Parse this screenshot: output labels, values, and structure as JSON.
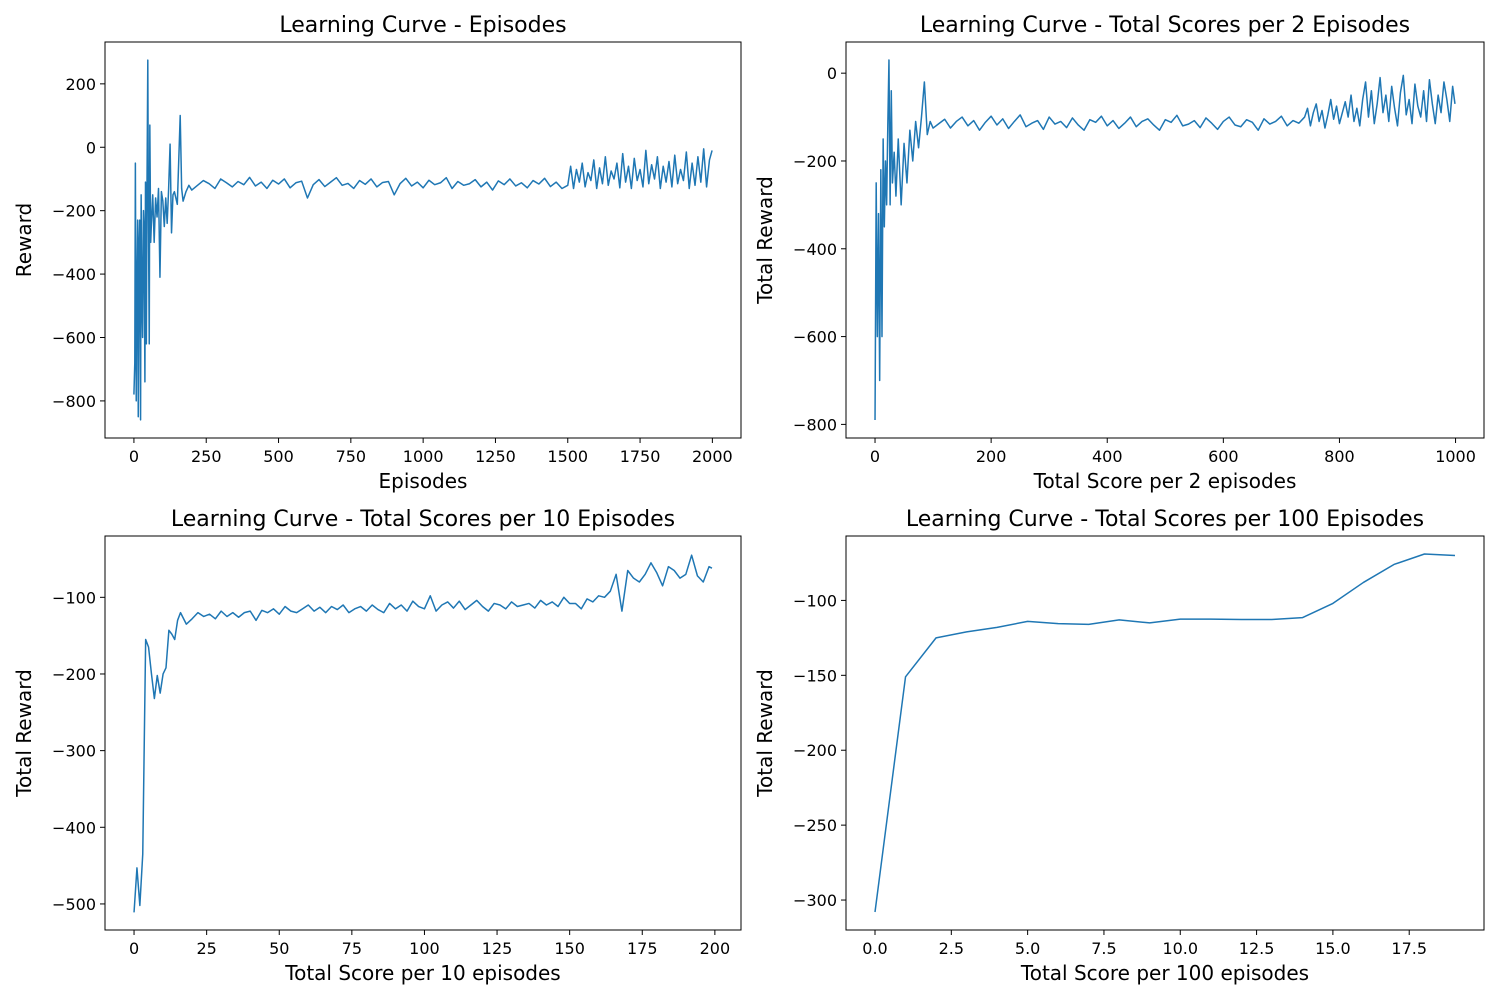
{
  "chart_data": [
    {
      "type": "line",
      "title": "Learning Curve - Episodes",
      "xlabel": "Episodes",
      "ylabel": "Reward",
      "color": "#1f77b4",
      "xlim": [
        -100,
        2099
      ],
      "ylim": [
        -917,
        332
      ],
      "xticks": [
        0,
        250,
        500,
        750,
        1000,
        1250,
        1500,
        1750,
        2000
      ],
      "yticks": [
        {
          "value": -800,
          "label": "−800"
        },
        {
          "value": -600,
          "label": "−600"
        },
        {
          "value": -400,
          "label": "−400"
        },
        {
          "value": -200,
          "label": "−200"
        },
        0,
        200
      ],
      "x": [
        0,
        3,
        5,
        8,
        10,
        13,
        15,
        18,
        20,
        23,
        25,
        28,
        30,
        33,
        35,
        38,
        40,
        43,
        45,
        48,
        50,
        53,
        55,
        58,
        60,
        65,
        70,
        75,
        80,
        85,
        90,
        95,
        100,
        105,
        110,
        115,
        120,
        125,
        130,
        135,
        140,
        150,
        160,
        165,
        170,
        180,
        190,
        200,
        220,
        240,
        260,
        280,
        300,
        320,
        340,
        360,
        380,
        400,
        420,
        440,
        460,
        480,
        500,
        520,
        540,
        560,
        580,
        600,
        620,
        640,
        660,
        680,
        700,
        720,
        740,
        760,
        780,
        800,
        820,
        840,
        860,
        880,
        900,
        920,
        940,
        960,
        980,
        1000,
        1020,
        1040,
        1060,
        1080,
        1100,
        1120,
        1140,
        1160,
        1180,
        1200,
        1220,
        1240,
        1260,
        1280,
        1300,
        1320,
        1340,
        1360,
        1380,
        1400,
        1420,
        1440,
        1460,
        1480,
        1500,
        1510,
        1520,
        1530,
        1540,
        1550,
        1560,
        1570,
        1580,
        1590,
        1600,
        1610,
        1620,
        1630,
        1640,
        1650,
        1660,
        1670,
        1680,
        1690,
        1700,
        1710,
        1720,
        1730,
        1740,
        1750,
        1760,
        1770,
        1780,
        1790,
        1800,
        1810,
        1820,
        1830,
        1840,
        1850,
        1860,
        1870,
        1880,
        1890,
        1900,
        1910,
        1920,
        1930,
        1940,
        1950,
        1960,
        1970,
        1980,
        1990,
        1999
      ],
      "values": [
        -780,
        -680,
        -50,
        -800,
        -490,
        -230,
        -850,
        -300,
        -230,
        -860,
        -150,
        -500,
        -600,
        -200,
        -250,
        -740,
        -110,
        -620,
        -150,
        275,
        -200,
        -620,
        70,
        -300,
        -250,
        -150,
        -300,
        -160,
        -220,
        -130,
        -410,
        -140,
        -170,
        -250,
        -160,
        -240,
        -130,
        10,
        -270,
        -150,
        -140,
        -180,
        100,
        -130,
        -170,
        -140,
        -120,
        -135,
        -120,
        -105,
        -115,
        -130,
        -100,
        -112,
        -125,
        -108,
        -118,
        -95,
        -122,
        -110,
        -130,
        -104,
        -116,
        -100,
        -128,
        -112,
        -107,
        -160,
        -118,
        -102,
        -124,
        -110,
        -96,
        -120,
        -114,
        -130,
        -105,
        -117,
        -100,
        -125,
        -111,
        -108,
        -150,
        -115,
        -98,
        -122,
        -110,
        -128,
        -104,
        -118,
        -112,
        -96,
        -130,
        -108,
        -120,
        -115,
        -102,
        -125,
        -110,
        -135,
        -106,
        -118,
        -100,
        -122,
        -112,
        -128,
        -105,
        -116,
        -98,
        -124,
        -110,
        -130,
        -120,
        -60,
        -130,
        -70,
        -110,
        -50,
        -125,
        -80,
        -105,
        -40,
        -130,
        -65,
        -115,
        -30,
        -120,
        -75,
        -100,
        -50,
        -128,
        -20,
        -110,
        -60,
        -130,
        -35,
        -105,
        -70,
        -125,
        -10,
        -115,
        -55,
        -100,
        -30,
        -130,
        -60,
        -110,
        -45,
        -125,
        -25,
        -115,
        -70,
        -105,
        -15,
        -130,
        -50,
        -120,
        -30,
        -110,
        -5,
        -125,
        -40,
        -10
      ]
    },
    {
      "type": "line",
      "title": "Learning Curve - Total Scores per 2 Episodes",
      "xlabel": "Total Score per 2 episodes",
      "ylabel": "Total Reward",
      "color": "#1f77b4",
      "xlim": [
        -50,
        1049
      ],
      "ylim": [
        -831,
        71
      ],
      "xticks": [
        0,
        200,
        400,
        600,
        800,
        1000
      ],
      "yticks": [
        {
          "value": -800,
          "label": "−800"
        },
        {
          "value": -600,
          "label": "−600"
        },
        {
          "value": -400,
          "label": "−400"
        },
        {
          "value": -200,
          "label": "−200"
        },
        0
      ],
      "x": [
        0,
        2,
        4,
        6,
        8,
        10,
        12,
        14,
        16,
        18,
        20,
        22,
        24,
        26,
        28,
        30,
        33,
        36,
        40,
        45,
        50,
        55,
        60,
        65,
        70,
        75,
        80,
        85,
        90,
        95,
        100,
        110,
        120,
        130,
        140,
        150,
        160,
        170,
        180,
        190,
        200,
        210,
        220,
        230,
        240,
        250,
        260,
        270,
        280,
        290,
        300,
        310,
        320,
        330,
        340,
        350,
        360,
        370,
        380,
        390,
        400,
        410,
        420,
        430,
        440,
        450,
        460,
        470,
        480,
        490,
        500,
        510,
        520,
        530,
        540,
        550,
        560,
        570,
        580,
        590,
        600,
        610,
        620,
        630,
        640,
        650,
        660,
        670,
        680,
        690,
        700,
        710,
        720,
        730,
        740,
        745,
        750,
        755,
        760,
        765,
        770,
        775,
        780,
        785,
        790,
        795,
        800,
        805,
        810,
        815,
        820,
        825,
        830,
        835,
        840,
        845,
        850,
        855,
        860,
        865,
        870,
        875,
        880,
        885,
        890,
        895,
        900,
        905,
        910,
        915,
        920,
        925,
        930,
        935,
        940,
        945,
        950,
        955,
        960,
        965,
        970,
        975,
        980,
        985,
        990,
        995,
        999
      ],
      "values": [
        -790,
        -250,
        -600,
        -320,
        -700,
        -220,
        -600,
        -150,
        -350,
        -200,
        -300,
        -120,
        30,
        -300,
        -40,
        -250,
        -180,
        -280,
        -150,
        -300,
        -160,
        -250,
        -130,
        -200,
        -110,
        -170,
        -100,
        -20,
        -140,
        -110,
        -125,
        -115,
        -105,
        -125,
        -110,
        -100,
        -120,
        -108,
        -130,
        -112,
        -98,
        -118,
        -104,
        -126,
        -110,
        -95,
        -122,
        -114,
        -108,
        -128,
        -100,
        -116,
        -110,
        -124,
        -102,
        -118,
        -130,
        -106,
        -112,
        -98,
        -120,
        -108,
        -126,
        -114,
        -100,
        -122,
        -110,
        -104,
        -118,
        -130,
        -106,
        -112,
        -96,
        -120,
        -116,
        -108,
        -124,
        -102,
        -114,
        -128,
        -110,
        -100,
        -118,
        -122,
        -106,
        -112,
        -130,
        -104,
        -116,
        -110,
        -98,
        -120,
        -108,
        -114,
        -100,
        -80,
        -120,
        -90,
        -70,
        -110,
        -85,
        -125,
        -95,
        -60,
        -105,
        -75,
        -115,
        -90,
        -65,
        -100,
        -50,
        -110,
        -80,
        -120,
        -60,
        -20,
        -100,
        -40,
        -115,
        -70,
        -10,
        -90,
        -50,
        -110,
        -30,
        -80,
        -120,
        -45,
        -5,
        -95,
        -60,
        -115,
        -25,
        -75,
        -100,
        -40,
        -110,
        -15,
        -70,
        -115,
        -50,
        -90,
        -20,
        -60,
        -110,
        -30,
        -70
      ]
    },
    {
      "type": "line",
      "title": "Learning Curve - Total Scores per 10 Episodes",
      "xlabel": "Total Score per 10 episodes",
      "ylabel": "Total Reward",
      "color": "#1f77b4",
      "xlim": [
        -10,
        209
      ],
      "ylim": [
        -534,
        -20
      ],
      "xticks": [
        0,
        25,
        50,
        75,
        100,
        125,
        150,
        175,
        200
      ],
      "yticks": [
        {
          "value": -500,
          "label": "−500"
        },
        {
          "value": -400,
          "label": "−400"
        },
        {
          "value": -300,
          "label": "−300"
        },
        {
          "value": -200,
          "label": "−200"
        },
        {
          "value": -100,
          "label": "−100"
        }
      ],
      "x": [
        0,
        1,
        2,
        3,
        4,
        5,
        6,
        7,
        8,
        9,
        10,
        11,
        12,
        13,
        14,
        15,
        16,
        18,
        20,
        22,
        24,
        26,
        28,
        30,
        32,
        34,
        36,
        38,
        40,
        42,
        44,
        46,
        48,
        50,
        52,
        54,
        56,
        58,
        60,
        62,
        64,
        66,
        68,
        70,
        72,
        74,
        76,
        78,
        80,
        82,
        84,
        86,
        88,
        90,
        92,
        94,
        96,
        98,
        100,
        102,
        104,
        106,
        108,
        110,
        112,
        114,
        116,
        118,
        120,
        122,
        124,
        126,
        128,
        130,
        132,
        134,
        136,
        138,
        140,
        142,
        144,
        146,
        148,
        150,
        152,
        154,
        156,
        158,
        160,
        162,
        164,
        166,
        168,
        170,
        172,
        174,
        176,
        178,
        180,
        182,
        184,
        186,
        188,
        190,
        192,
        194,
        196,
        198,
        199
      ],
      "values": [
        -511,
        -453,
        -502,
        -435,
        -155,
        -165,
        -200,
        -232,
        -202,
        -225,
        -200,
        -192,
        -143,
        -148,
        -155,
        -130,
        -120,
        -135,
        -128,
        -120,
        -125,
        -122,
        -128,
        -118,
        -125,
        -120,
        -126,
        -120,
        -118,
        -130,
        -117,
        -120,
        -115,
        -122,
        -112,
        -118,
        -120,
        -115,
        -110,
        -118,
        -113,
        -120,
        -112,
        -116,
        -110,
        -120,
        -115,
        -112,
        -118,
        -110,
        -116,
        -120,
        -108,
        -115,
        -110,
        -118,
        -105,
        -112,
        -115,
        -98,
        -118,
        -110,
        -106,
        -114,
        -105,
        -116,
        -110,
        -104,
        -112,
        -118,
        -108,
        -110,
        -115,
        -106,
        -112,
        -110,
        -108,
        -114,
        -104,
        -110,
        -106,
        -112,
        -100,
        -108,
        -108,
        -115,
        -102,
        -106,
        -98,
        -100,
        -92,
        -70,
        -118,
        -65,
        -75,
        -80,
        -70,
        -55,
        -68,
        -85,
        -60,
        -65,
        -75,
        -70,
        -45,
        -72,
        -80,
        -60,
        -62
      ]
    },
    {
      "type": "line",
      "title": "Learning Curve - Total Scores per 100 Episodes",
      "xlabel": "Total Score per 100 episodes",
      "ylabel": "Total Reward",
      "color": "#1f77b4",
      "xlim": [
        -0.95,
        19.95
      ],
      "ylim": [
        -320,
        -57
      ],
      "xticks": [
        {
          "value": 0,
          "label": "0.0"
        },
        2.5,
        {
          "value": 5,
          "label": "5.0"
        },
        7.5,
        {
          "value": 10,
          "label": "10.0"
        },
        12.5,
        {
          "value": 15,
          "label": "15.0"
        },
        17.5
      ],
      "yticks": [
        {
          "value": -300,
          "label": "−300"
        },
        {
          "value": -250,
          "label": "−250"
        },
        {
          "value": -200,
          "label": "−200"
        },
        {
          "value": -150,
          "label": "−150"
        },
        {
          "value": -100,
          "label": "−100"
        }
      ],
      "x": [
        0,
        1,
        2,
        3,
        4,
        5,
        6,
        7,
        8,
        9,
        10,
        11,
        12,
        13,
        14,
        15,
        16,
        17,
        18,
        19
      ],
      "values": [
        -308,
        -151,
        -125,
        -121,
        -118,
        -114,
        -115.5,
        -116,
        -113,
        -115,
        -112.5,
        -112.5,
        -112.7,
        -112.7,
        -111.5,
        -102,
        -88,
        -76,
        -69,
        -70
      ]
    }
  ]
}
